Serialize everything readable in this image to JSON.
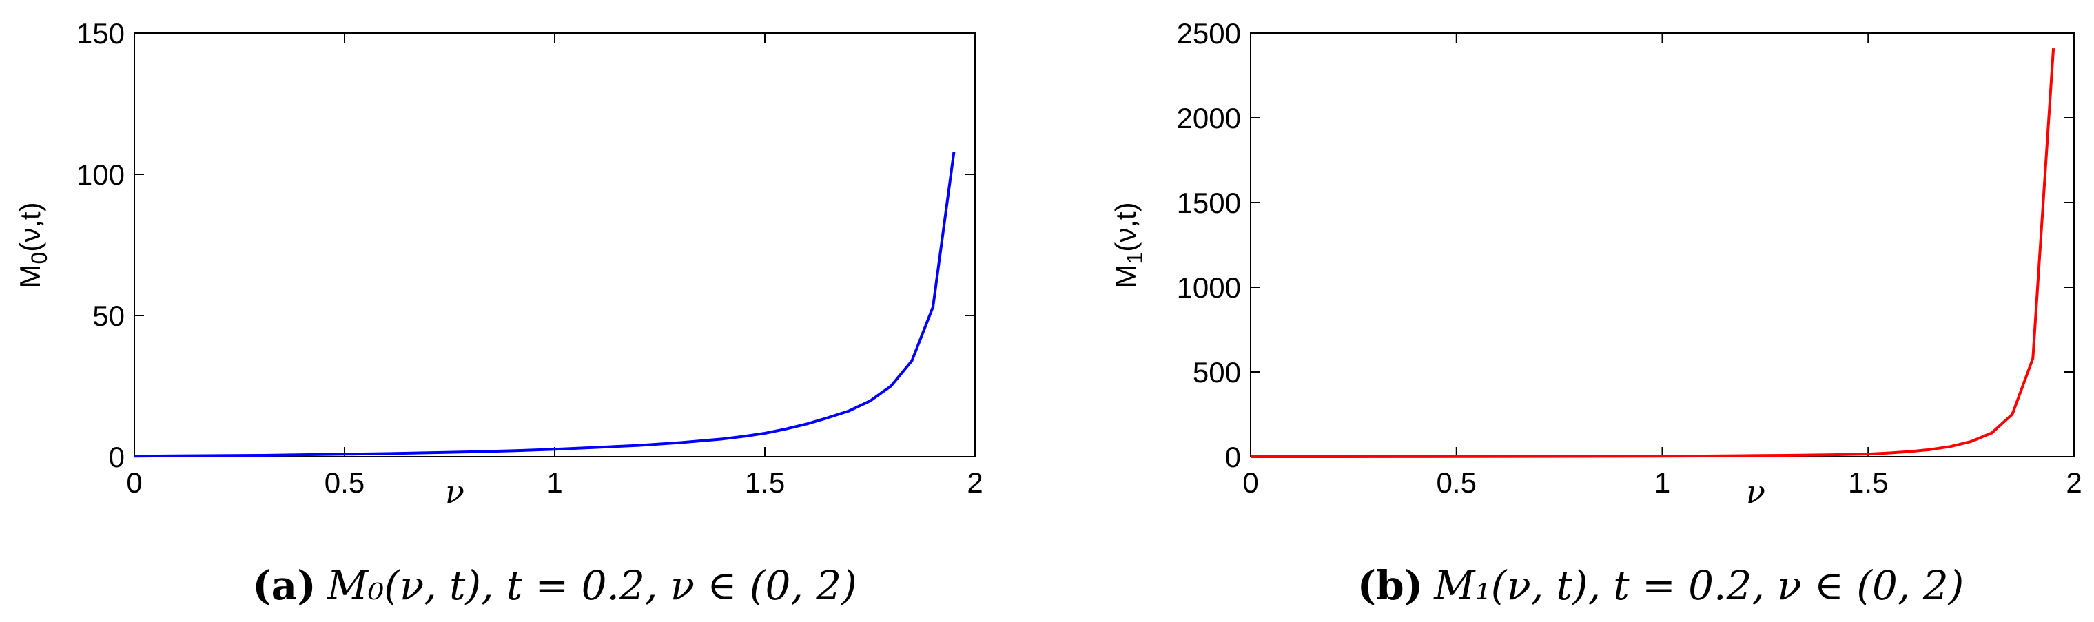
{
  "chart_data": [
    {
      "type": "line",
      "ylabel": "M_0(ν,t)",
      "ylabel_main": "M",
      "ylabel_sub": "0",
      "ylabel_rest": "(ν,t)",
      "xlabel": "ν",
      "xlim": [
        0,
        2
      ],
      "ylim": [
        0,
        150
      ],
      "xticks": [
        "0",
        "0.5",
        "1",
        "1.5",
        "2"
      ],
      "yticks": [
        "0",
        "50",
        "100",
        "150"
      ],
      "grid": false,
      "series": [
        {
          "color": "#0000ff",
          "x": [
            0,
            0.1,
            0.2,
            0.3,
            0.4,
            0.5,
            0.6,
            0.7,
            0.8,
            0.9,
            1.0,
            1.1,
            1.2,
            1.3,
            1.4,
            1.45,
            1.5,
            1.55,
            1.6,
            1.65,
            1.7,
            1.75,
            1.8,
            1.85,
            1.9,
            1.95
          ],
          "y": [
            0.2,
            0.3,
            0.4,
            0.5,
            0.7,
            0.9,
            1.1,
            1.4,
            1.7,
            2.1,
            2.6,
            3.3,
            4.0,
            5.0,
            6.3,
            7.2,
            8.3,
            9.8,
            11.6,
            13.8,
            16.2,
            19.7,
            25.0,
            34.0,
            53.0,
            108.0
          ]
        }
      ],
      "caption": {
        "tag": "(a)",
        "text": "M₀(ν, t), t = 0.2, ν ∈ (0, 2)"
      }
    },
    {
      "type": "line",
      "ylabel": "M_1(ν,t)",
      "ylabel_main": "M",
      "ylabel_sub": "1",
      "ylabel_rest": "(ν,t)",
      "xlabel": "ν",
      "xlim": [
        0,
        2
      ],
      "ylim": [
        0,
        2500
      ],
      "xticks": [
        "0",
        "0.5",
        "1",
        "1.5",
        "2"
      ],
      "yticks": [
        "0",
        "500",
        "1000",
        "1500",
        "2000",
        "2500"
      ],
      "grid": false,
      "series": [
        {
          "color": "#ff0000",
          "x": [
            0,
            0.2,
            0.4,
            0.6,
            0.8,
            1.0,
            1.1,
            1.2,
            1.3,
            1.4,
            1.5,
            1.55,
            1.6,
            1.65,
            1.7,
            1.75,
            1.8,
            1.85,
            1.9,
            1.95
          ],
          "y": [
            0,
            0,
            0.5,
            1,
            2,
            3,
            4,
            6,
            8,
            11,
            16,
            22,
            30,
            42,
            60,
            90,
            140,
            250,
            580,
            2410
          ]
        }
      ],
      "caption": {
        "tag": "(b)",
        "text": "M₁(ν, t), t = 0.2, ν ∈ (0, 2)"
      }
    }
  ]
}
